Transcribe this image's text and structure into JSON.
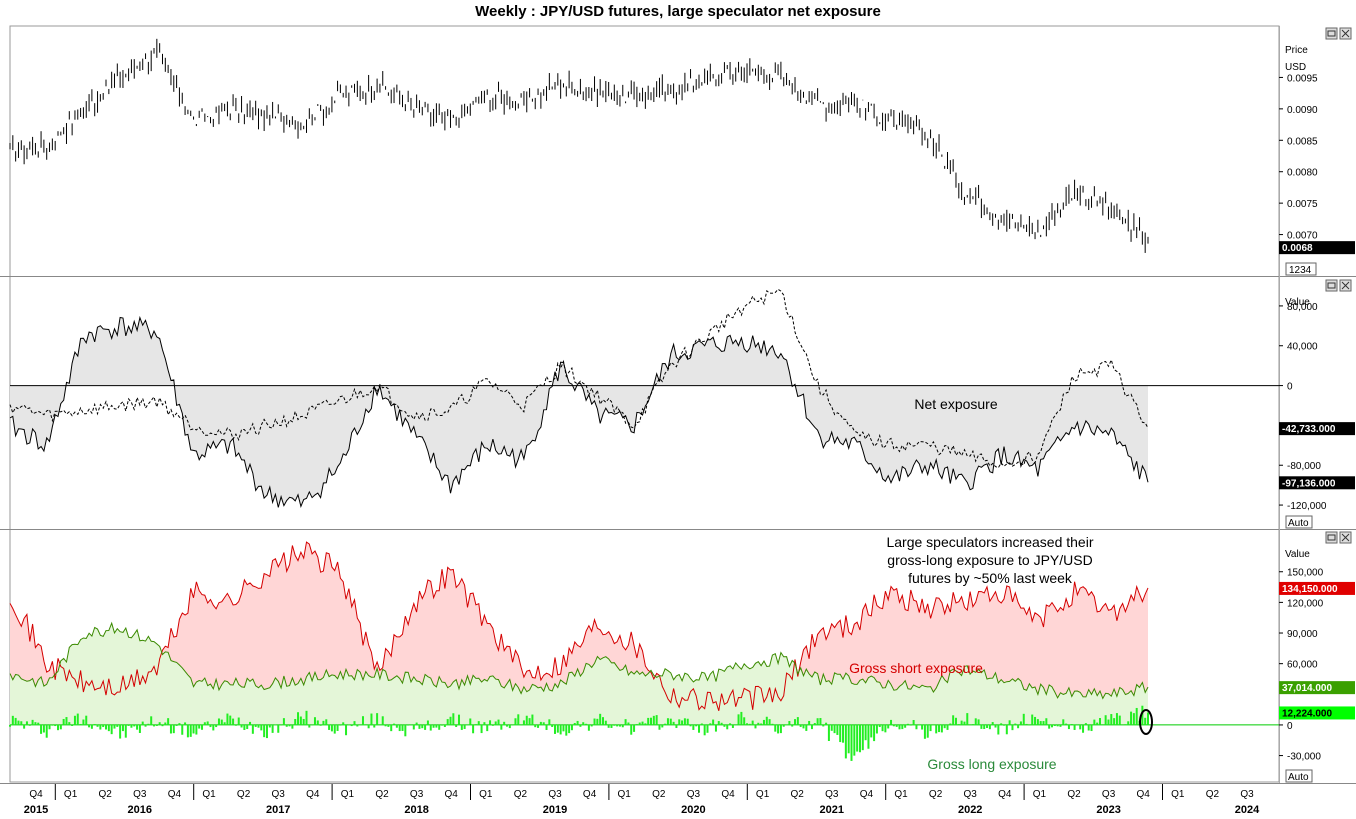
{
  "title": "Weekly : JPY/USD futures, large speculator net exposure",
  "colors": {
    "price": "#000000",
    "net_fill": "#e6e6e6",
    "short": "#d40000",
    "short_fill": "#ffd6d6",
    "long_line": "#3a8a00",
    "long_fill": "#e4f6d8",
    "weekly_change": "#22ee22",
    "value_box": "#000000",
    "red_box": "#e00000",
    "green_box": "#3aa000",
    "bright_green_box": "#00ff00"
  },
  "panels": {
    "price": {
      "axis_title": [
        "Price",
        "USD"
      ],
      "ticks": [
        "0.0095",
        "0.0090",
        "0.0085",
        "0.0080",
        "0.0075",
        "0.0070"
      ],
      "last_value": "0.0068",
      "box_label": "1234",
      "window_icons": [
        "restore-icon",
        "close-icon"
      ]
    },
    "net": {
      "axis_title": "Value",
      "ticks": [
        "80,000",
        "40,000",
        "0",
        "-80,000",
        "-120,000"
      ],
      "annotation": "Net exposure",
      "values": [
        "-42,733.000",
        "-97,136.000"
      ],
      "auto_label": "Auto"
    },
    "gross": {
      "axis_title": "Value",
      "ticks": [
        "150,000",
        "120,000",
        "90,000",
        "60,000",
        "0",
        "-30,000"
      ],
      "annotation_lines": [
        "Large speculators increased their",
        "gross-long exposure to JPY/USD",
        "futures by ~50% last week"
      ],
      "short_label": "Gross short exposure",
      "long_label": "Gross long exposure",
      "values": [
        "134,150.000",
        "37,014.000",
        "12,224.000"
      ],
      "auto_label": "Auto"
    }
  },
  "time_axis": {
    "quarters": [
      "Q4",
      "Q1",
      "Q2",
      "Q3",
      "Q4",
      "Q1",
      "Q2",
      "Q3",
      "Q4",
      "Q1",
      "Q2",
      "Q3",
      "Q4",
      "Q1",
      "Q2",
      "Q3",
      "Q4",
      "Q1",
      "Q2",
      "Q3",
      "Q4",
      "Q1",
      "Q2",
      "Q3",
      "Q4",
      "Q1",
      "Q2",
      "Q3",
      "Q4",
      "Q1",
      "Q2",
      "Q3",
      "Q4",
      "Q1",
      "Q2",
      "Q3"
    ],
    "years": [
      "2015",
      "2016",
      "2017",
      "2018",
      "2019",
      "2020",
      "2021",
      "2022",
      "2023",
      "2024"
    ]
  },
  "chart_data": [
    {
      "type": "line",
      "title": "Weekly : JPY/USD futures, large speculator net exposure",
      "ylabel": "Price USD",
      "ylim": [
        0.0065,
        0.01
      ],
      "x": [
        "2015-Q4",
        "2016-Q1",
        "2016-Q2",
        "2016-Q3",
        "2016-Q4",
        "2017-Q1",
        "2017-Q2",
        "2017-Q3",
        "2017-Q4",
        "2018-Q1",
        "2018-Q2",
        "2018-Q3",
        "2018-Q4",
        "2019-Q1",
        "2019-Q2",
        "2019-Q3",
        "2019-Q4",
        "2020-Q1",
        "2020-Q2",
        "2020-Q3",
        "2020-Q4",
        "2021-Q1",
        "2021-Q2",
        "2021-Q3",
        "2021-Q4",
        "2022-Q1",
        "2022-Q2",
        "2022-Q3",
        "2022-Q4",
        "2023-Q1",
        "2023-Q2",
        "2023-Q3"
      ],
      "series": [
        {
          "name": "",
          "values": [
            0.0083,
            0.0084,
            0.009,
            0.0095,
            0.0099,
            0.0088,
            0.009,
            0.0089,
            0.0088,
            0.0092,
            0.0094,
            0.009,
            0.0088,
            0.0092,
            0.0091,
            0.0094,
            0.0093,
            0.0092,
            0.0093,
            0.0095,
            0.0096,
            0.0095,
            0.0091,
            0.0091,
            0.0088,
            0.0086,
            0.0077,
            0.0073,
            0.007,
            0.0077,
            0.0074,
            0.0069
          ]
        }
      ]
    },
    {
      "type": "area",
      "ylim": [
        -135000,
        100000
      ],
      "x": [
        "2015-Q4",
        "2016-Q1",
        "2016-Q2",
        "2016-Q3",
        "2016-Q4",
        "2017-Q1",
        "2017-Q2",
        "2017-Q3",
        "2017-Q4",
        "2018-Q1",
        "2018-Q2",
        "2018-Q3",
        "2018-Q4",
        "2019-Q1",
        "2019-Q2",
        "2019-Q3",
        "2019-Q4",
        "2020-Q1",
        "2020-Q2",
        "2020-Q3",
        "2020-Q4",
        "2021-Q1",
        "2021-Q2",
        "2021-Q3",
        "2021-Q4",
        "2022-Q1",
        "2022-Q2",
        "2022-Q3",
        "2022-Q4",
        "2023-Q1",
        "2023-Q2",
        "2023-Q3"
      ],
      "series": [
        {
          "name": "Net exposure",
          "values": [
            -40000,
            -60000,
            50000,
            60000,
            55000,
            -70000,
            -60000,
            -110000,
            -120000,
            -80000,
            0,
            -50000,
            -100000,
            -60000,
            -75000,
            20000,
            -30000,
            -40000,
            30000,
            40000,
            45000,
            35000,
            -50000,
            -60000,
            -95000,
            -80000,
            -100000,
            -70000,
            -85000,
            -40000,
            -50000,
            -97136
          ]
        },
        {
          "name": "",
          "values": [
            -20000,
            -30000,
            -25000,
            -20000,
            -15000,
            -40000,
            -50000,
            -40000,
            -30000,
            -15000,
            0,
            -30000,
            -25000,
            5000,
            -20000,
            20000,
            -10000,
            -40000,
            20000,
            50000,
            80000,
            95000,
            0,
            -50000,
            -60000,
            -60000,
            -70000,
            -80000,
            -70000,
            10000,
            20000,
            -42733
          ]
        }
      ]
    },
    {
      "type": "area",
      "ylim": [
        -50000,
        185000
      ],
      "x": [
        "2015-Q4",
        "2016-Q1",
        "2016-Q2",
        "2016-Q3",
        "2016-Q4",
        "2017-Q1",
        "2017-Q2",
        "2017-Q3",
        "2017-Q4",
        "2018-Q1",
        "2018-Q2",
        "2018-Q3",
        "2018-Q4",
        "2019-Q1",
        "2019-Q2",
        "2019-Q3",
        "2019-Q4",
        "2020-Q1",
        "2020-Q2",
        "2020-Q3",
        "2020-Q4",
        "2021-Q1",
        "2021-Q2",
        "2021-Q3",
        "2021-Q4",
        "2022-Q1",
        "2022-Q2",
        "2022-Q3",
        "2022-Q4",
        "2023-Q1",
        "2023-Q2",
        "2023-Q3"
      ],
      "series": [
        {
          "name": "Gross short exposure",
          "values": [
            130000,
            60000,
            40000,
            35000,
            55000,
            130000,
            120000,
            150000,
            170000,
            150000,
            50000,
            120000,
            150000,
            100000,
            50000,
            60000,
            100000,
            80000,
            30000,
            25000,
            25000,
            30000,
            90000,
            100000,
            130000,
            115000,
            120000,
            130000,
            100000,
            130000,
            110000,
            134150
          ]
        },
        {
          "name": "Gross long exposure",
          "values": [
            50000,
            40000,
            90000,
            95000,
            80000,
            40000,
            40000,
            40000,
            45000,
            50000,
            50000,
            45000,
            40000,
            45000,
            35000,
            40000,
            65000,
            50000,
            50000,
            45000,
            60000,
            65000,
            45000,
            45000,
            40000,
            35000,
            55000,
            45000,
            35000,
            30000,
            30000,
            37014
          ]
        },
        {
          "name": "",
          "values": [
            5000,
            -5000,
            8000,
            -10000,
            4000,
            -8000,
            6000,
            -5000,
            7000,
            -4000,
            5000,
            -6000,
            4000,
            -3000,
            6000,
            -5000,
            4000,
            -3000,
            5000,
            -4000,
            6000,
            -3000,
            4000,
            -35000,
            5000,
            -8000,
            6000,
            -5000,
            8000,
            -6000,
            5000,
            12224
          ]
        }
      ]
    }
  ]
}
